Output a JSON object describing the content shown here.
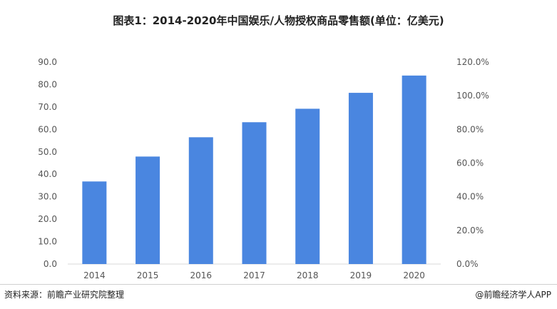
{
  "title": "图表1：2014-2020年中国娱乐/人物授权商品零售额(单位：亿美元)",
  "source": "资料来源：前瞻产业研究院整理",
  "credit": "@前瞻经济学人APP",
  "colors": {
    "bar": "#4a86e0",
    "axis": "#d9d9d9"
  },
  "chart_data": {
    "type": "bar",
    "categories": [
      "2014",
      "2015",
      "2016",
      "2017",
      "2018",
      "2019",
      "2020"
    ],
    "values": [
      36.8,
      47.9,
      56.5,
      63.2,
      69.2,
      76.3,
      84.0
    ],
    "ylim": [
      0,
      90
    ],
    "yticks": [
      "0.0",
      "10.0",
      "20.0",
      "30.0",
      "40.0",
      "50.0",
      "60.0",
      "70.0",
      "80.0",
      "90.0"
    ],
    "y2lim": [
      0,
      120
    ],
    "y2ticks": [
      "0.0%",
      "20.0%",
      "40.0%",
      "60.0%",
      "80.0%",
      "100.0%",
      "120.0%"
    ],
    "grid": false,
    "legend": "none"
  }
}
